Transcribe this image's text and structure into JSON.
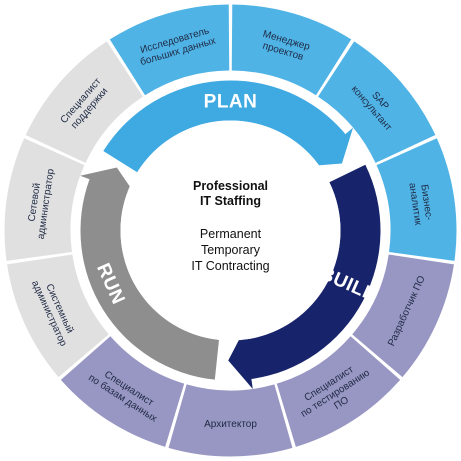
{
  "colors": {
    "plan_segment": "#4fb3e6",
    "plan_arrow": "#3fa9e2",
    "build_segment": "#9896c3",
    "build_arrow": "#17246b",
    "run_segment": "#e0e0e0",
    "run_arrow": "#8e8e8e",
    "segment_text": "#1f2a44"
  },
  "center": {
    "title_lines": [
      "Professional",
      "IT Staffing"
    ],
    "lines": [
      "Permanent",
      "Temporary",
      "IT Contracting"
    ]
  },
  "phases": {
    "plan": "PLAN",
    "build": "BUILD",
    "run": "RUN"
  },
  "segments": [
    {
      "group": "plan",
      "lines": [
        "Менеджер",
        "проектов"
      ]
    },
    {
      "group": "plan",
      "lines": [
        "SAP",
        "консультант"
      ]
    },
    {
      "group": "plan",
      "lines": [
        "Бизнес-",
        "аналитик"
      ]
    },
    {
      "group": "build",
      "lines": [
        "Разработчик ПО"
      ]
    },
    {
      "group": "build",
      "lines": [
        "Специалист",
        "по тестированию",
        "ПО"
      ]
    },
    {
      "group": "build",
      "lines": [
        "Архитектор"
      ]
    },
    {
      "group": "build",
      "lines": [
        "Специалист",
        "по базам данных"
      ]
    },
    {
      "group": "run",
      "lines": [
        "Системный",
        "администратор"
      ]
    },
    {
      "group": "run",
      "lines": [
        "Сетевой",
        "администратор"
      ]
    },
    {
      "group": "run",
      "lines": [
        "Специалист",
        "поддержки"
      ]
    },
    {
      "group": "plan",
      "lines": [
        "Исследователь",
        "больших данных"
      ]
    }
  ]
}
